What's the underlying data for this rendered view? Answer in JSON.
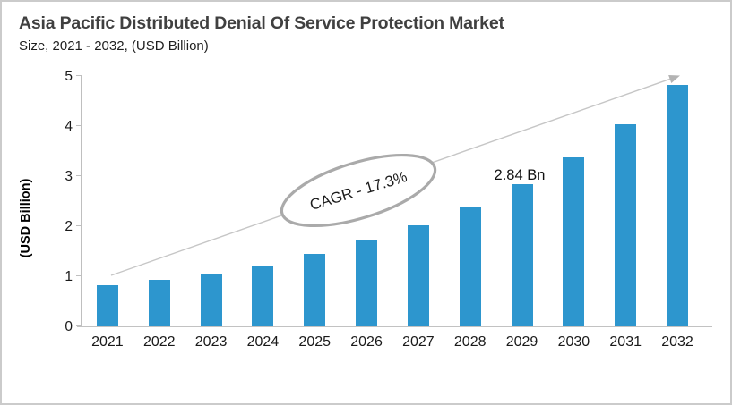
{
  "window": {
    "background": "#ffffff",
    "border_color": "#cbcbcb"
  },
  "header": {
    "title": "Asia Pacific Distributed Denial Of Service Protection Market",
    "subtitle": "Size, 2021 - 2032, (USD Billion)"
  },
  "chart_data": {
    "type": "bar",
    "title": "Asia Pacific Distributed Denial Of Service Protection Market",
    "subtitle": "Size, 2021 - 2032, (USD Billion)",
    "categories": [
      "2021",
      "2022",
      "2023",
      "2024",
      "2025",
      "2026",
      "2027",
      "2028",
      "2029",
      "2030",
      "2031",
      "2032"
    ],
    "values": [
      0.83,
      0.92,
      1.06,
      1.22,
      1.45,
      1.73,
      2.02,
      2.39,
      2.84,
      3.38,
      4.03,
      4.82
    ],
    "xlabel": "",
    "ylabel": "(USD Billion)",
    "ylim": [
      0,
      5
    ],
    "yticks": [
      0,
      1,
      2,
      3,
      4,
      5
    ],
    "grid": false,
    "legend": false,
    "bar_color": "#2D96CE",
    "axis_color": "#bfbfbf",
    "trend_line_color": "#c6c6c6",
    "annotation_stroke_color": "#aaaaaa",
    "annotations": {
      "cagr_label": "CAGR - 17.3%",
      "value_label": {
        "text": "2.84 Bn",
        "category": "2029"
      },
      "trend_arrow": true
    }
  }
}
